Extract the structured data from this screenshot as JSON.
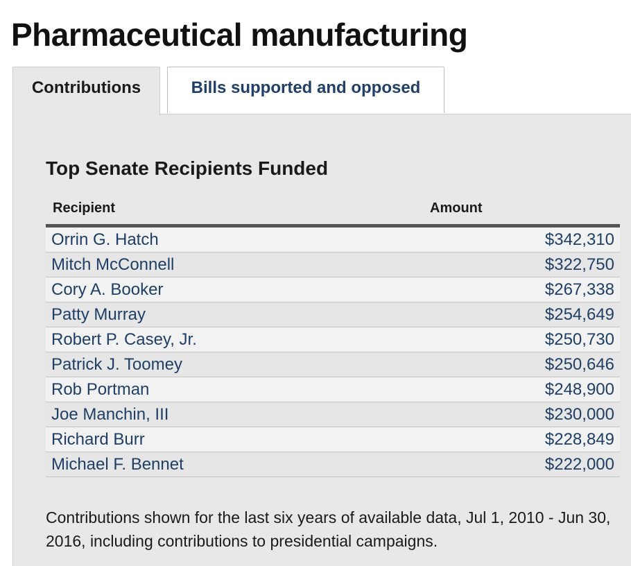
{
  "page": {
    "title": "Pharmaceutical manufacturing"
  },
  "tabs": [
    {
      "label": "Contributions",
      "active": true
    },
    {
      "label": "Bills supported and opposed",
      "active": false
    }
  ],
  "section": {
    "title": "Top Senate Recipients Funded"
  },
  "table": {
    "headers": {
      "recipient": "Recipient",
      "amount": "Amount"
    },
    "rows": [
      {
        "name": "Orrin G. Hatch",
        "amount": "$342,310"
      },
      {
        "name": "Mitch McConnell",
        "amount": "$322,750"
      },
      {
        "name": "Cory A. Booker",
        "amount": "$267,338"
      },
      {
        "name": "Patty Murray",
        "amount": "$254,649"
      },
      {
        "name": "Robert P. Casey, Jr.",
        "amount": "$250,730"
      },
      {
        "name": "Patrick J. Toomey",
        "amount": "$250,646"
      },
      {
        "name": "Rob Portman",
        "amount": "$248,900"
      },
      {
        "name": "Joe Manchin, III",
        "amount": "$230,000"
      },
      {
        "name": "Richard Burr",
        "amount": "$228,849"
      },
      {
        "name": "Michael F. Bennet",
        "amount": "$222,000"
      }
    ]
  },
  "footnote": "Contributions shown for the last six years of available data, Jul 1, 2010 - Jun 30, 2016, including contributions to presidential campaigns.",
  "colors": {
    "link": "#1f3f66",
    "panel": "#e8e8e8",
    "header_rule": "#555555"
  }
}
